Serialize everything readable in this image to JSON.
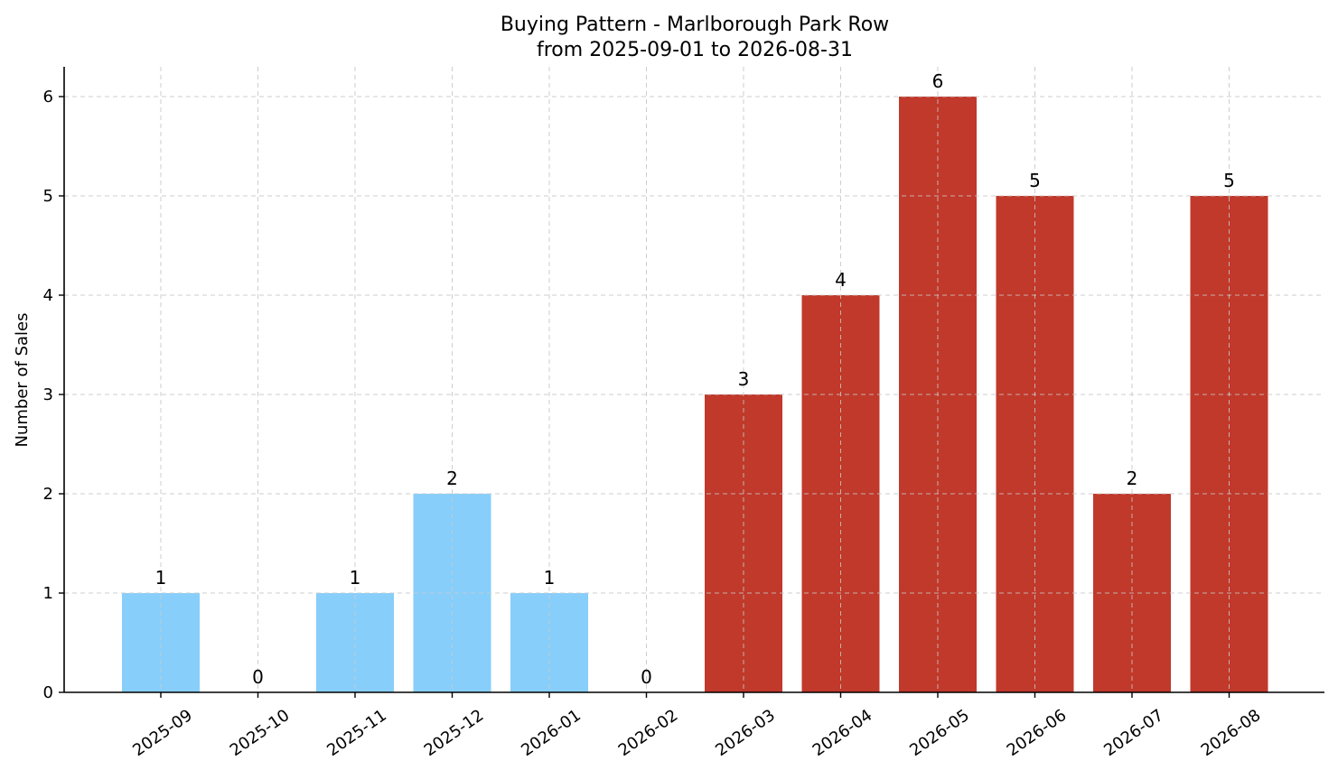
{
  "chart_data": {
    "type": "bar",
    "title": "Buying Pattern - Marlborough Park Row",
    "subtitle": "from 2025-09-01 to 2026-08-31",
    "xlabel": "",
    "ylabel": "Number of Sales",
    "categories": [
      "2025-09",
      "2025-10",
      "2025-11",
      "2025-12",
      "2026-01",
      "2026-02",
      "2026-03",
      "2026-04",
      "2026-05",
      "2026-06",
      "2026-07",
      "2026-08"
    ],
    "values": [
      1,
      0,
      1,
      2,
      1,
      0,
      3,
      4,
      6,
      5,
      2,
      5
    ],
    "ylim": [
      0,
      6.3
    ],
    "yticks": [
      0,
      1,
      2,
      3,
      4,
      5,
      6
    ],
    "grid": true,
    "bar_colors": [
      "#87CEFA",
      "#87CEFA",
      "#87CEFA",
      "#87CEFA",
      "#87CEFA",
      "#87CEFA",
      "#C0392B",
      "#C0392B",
      "#C0392B",
      "#C0392B",
      "#C0392B",
      "#C0392B"
    ],
    "value_labels": true
  }
}
